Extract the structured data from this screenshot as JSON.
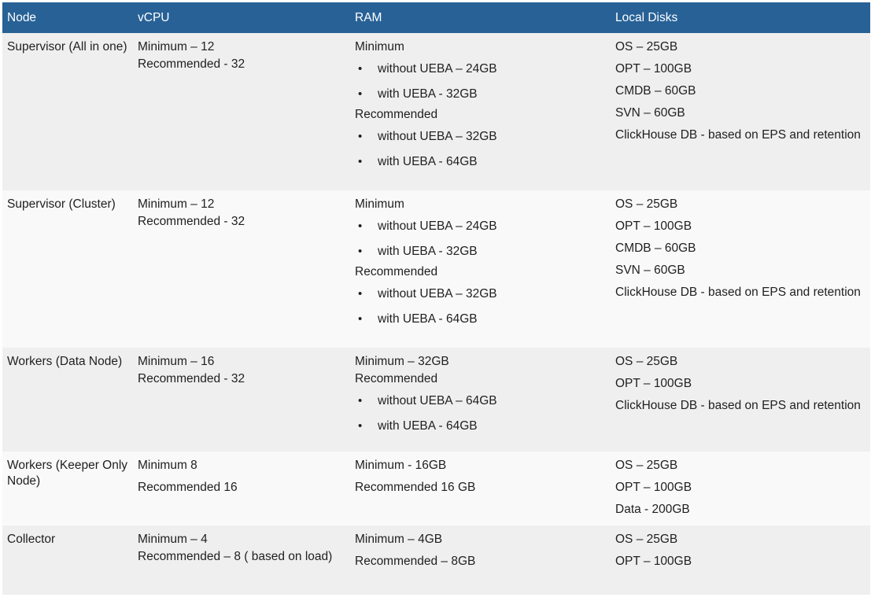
{
  "headers": [
    "Node",
    "vCPU",
    "RAM",
    "Local Disks"
  ],
  "rows": [
    {
      "node": "Supervisor (All in one)",
      "vcpu": [
        "Minimum – 12",
        "Recommended - 32"
      ],
      "ram_min_label": "Minimum",
      "ram_min": [
        "without UEBA – 24GB",
        "with UEBA - 32GB"
      ],
      "ram_rec_label": "Recommended",
      "ram_rec": [
        "without UEBA – 32GB",
        "with UEBA - 64GB"
      ],
      "disks": [
        "OS – 25GB",
        "OPT – 100GB",
        "CMDB – 60GB",
        "SVN – 60GB",
        "ClickHouse DB - based on EPS and retention"
      ]
    },
    {
      "node": "Supervisor (Cluster)",
      "vcpu": [
        "Minimum – 12",
        "Recommended - 32"
      ],
      "ram_min_label": "Minimum",
      "ram_min": [
        "without UEBA – 24GB",
        "with UEBA - 32GB"
      ],
      "ram_rec_label": "Recommended",
      "ram_rec": [
        "without UEBA – 32GB",
        "with UEBA - 64GB"
      ],
      "disks": [
        "OS – 25GB",
        "OPT – 100GB",
        "CMDB – 60GB",
        "SVN – 60GB",
        "ClickHouse DB - based on EPS and retention"
      ]
    },
    {
      "node": "Workers (Data Node)",
      "vcpu": [
        "Minimum – 16",
        "Recommended - 32"
      ],
      "ram_min_label": "Minimum – 32GB",
      "ram_rec_label": "Recommended",
      "ram_rec": [
        "without UEBA – 64GB",
        "with UEBA - 64GB"
      ],
      "disks": [
        "OS – 25GB",
        "OPT – 100GB",
        "ClickHouse DB - based on EPS and retention"
      ]
    },
    {
      "node": "Workers (Keeper Only Node)",
      "vcpu": [
        "Minimum 8",
        "Recommended 16"
      ],
      "ram": [
        "Minimum - 16GB",
        "Recommended 16 GB"
      ],
      "disks": [
        "OS – 25GB",
        "OPT – 100GB",
        "Data - 200GB"
      ]
    },
    {
      "node": "Collector",
      "vcpu": [
        "Minimum – 4",
        "Recommended – 8 ( based on load)"
      ],
      "ram": [
        "Minimum – 4GB",
        "Recommended – 8GB"
      ],
      "disks": [
        "OS – 25GB",
        "OPT – 100GB"
      ]
    }
  ]
}
